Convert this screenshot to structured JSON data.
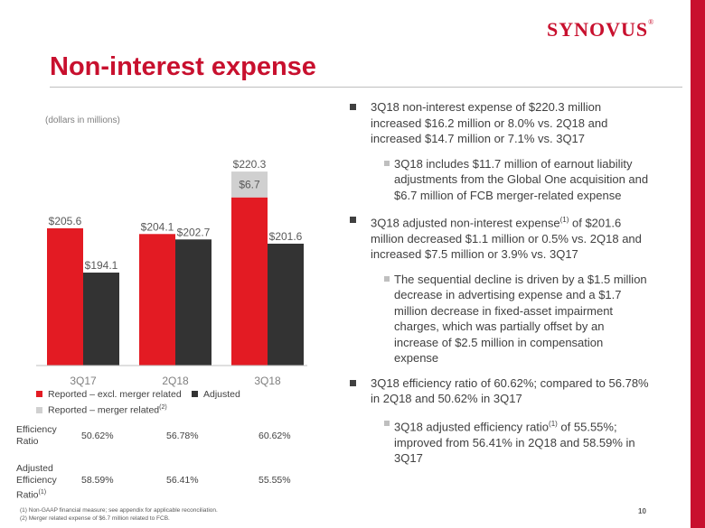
{
  "header": {
    "logo_text": "SYNOVUS",
    "logo_mark": "®",
    "title": "Non-interest expense"
  },
  "chart_note": "(dollars in millions)",
  "chart_data": {
    "type": "bar",
    "categories": [
      "3Q17",
      "2Q18",
      "3Q18"
    ],
    "series": [
      {
        "name": "Reported – excl. merger related",
        "values": [
          205.6,
          204.1,
          213.6
        ],
        "color": "#e31b23"
      },
      {
        "name": "Reported – merger related",
        "values": [
          0,
          0,
          6.7
        ],
        "color": "#d0d0d0"
      },
      {
        "name": "Adjusted",
        "values": [
          194.1,
          202.7,
          201.6
        ],
        "color": "#333333"
      }
    ],
    "data_labels": {
      "reported": [
        "$205.6",
        "$204.1",
        "$220.3"
      ],
      "adjusted": [
        "$194.1",
        "$202.7",
        "$201.6"
      ],
      "merger": [
        "",
        "",
        "$6.7"
      ]
    },
    "ylim": [
      170,
      225
    ]
  },
  "legend": {
    "reported_excl": "Reported – excl. merger related",
    "adjusted": "Adjusted",
    "merger": "Reported – merger related",
    "merger_note": "(2)"
  },
  "efficiency": {
    "row1_label_a": "Efficiency",
    "row1_label_b": "Ratio",
    "row1_values": [
      "50.62%",
      "56.78%",
      "60.62%"
    ],
    "row2_label_a": "Adjusted",
    "row2_label_b": "Efficiency",
    "row2_label_c": "Ratio",
    "row2_note": "(1)",
    "row2_values": [
      "58.59%",
      "56.41%",
      "55.55%"
    ]
  },
  "bullets": {
    "b1": "3Q18 non-interest expense of $220.3 million increased $16.2 million or 8.0% vs. 2Q18 and increased $14.7 million or 7.1% vs. 3Q17",
    "b1a": "3Q18 includes $11.7 million of earnout liability adjustments from the Global One acquisition and $6.7 million of FCB merger-related expense",
    "b2_pre": "3Q18 adjusted non-interest expense",
    "b2_note": "(1)",
    "b2_post": " of $201.6 million decreased $1.1 million or 0.5% vs. 2Q18 and increased $7.5 million or 3.9% vs. 3Q17",
    "b2a": "The sequential decline is driven by a $1.5 million decrease in advertising expense and a $1.7 million decrease in fixed-asset impairment charges, which was partially offset by an increase of $2.5 million in compensation expense",
    "b3": "3Q18 efficiency ratio of 60.62%; compared to 56.78% in 2Q18 and 50.62% in 3Q17",
    "b3a_pre": "3Q18 adjusted efficiency ratio",
    "b3a_note": "(1)",
    "b3a_post": " of 55.55%; improved from 56.41% in 2Q18 and 58.59% in 3Q17"
  },
  "footnotes": {
    "f1": "(1)   Non-GAAP financial measure; see appendix for applicable reconciliation.",
    "f2": "(2)   Merger related expense of $6.7 million related to FCB."
  },
  "page_number": "10"
}
